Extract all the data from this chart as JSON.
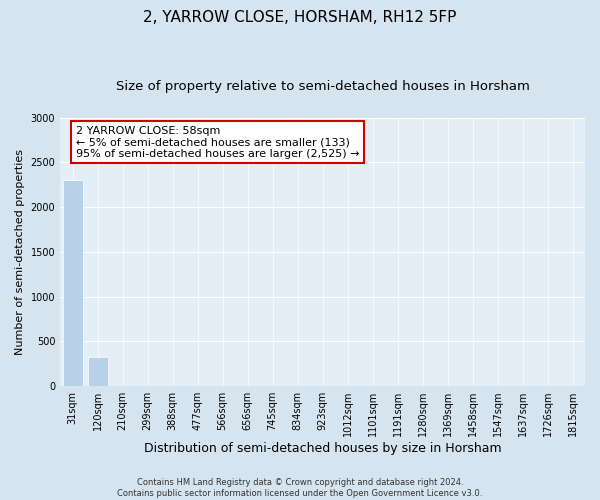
{
  "title": "2, YARROW CLOSE, HORSHAM, RH12 5FP",
  "subtitle": "Size of property relative to semi-detached houses in Horsham",
  "xlabel": "Distribution of semi-detached houses by size in Horsham",
  "ylabel": "Number of semi-detached properties",
  "footer_line1": "Contains HM Land Registry data © Crown copyright and database right 2024.",
  "footer_line2": "Contains public sector information licensed under the Open Government Licence v3.0.",
  "categories": [
    "31sqm",
    "120sqm",
    "210sqm",
    "299sqm",
    "388sqm",
    "477sqm",
    "566sqm",
    "656sqm",
    "745sqm",
    "834sqm",
    "923sqm",
    "1012sqm",
    "1101sqm",
    "1191sqm",
    "1280sqm",
    "1369sqm",
    "1458sqm",
    "1547sqm",
    "1637sqm",
    "1726sqm",
    "1815sqm"
  ],
  "values": [
    2300,
    330,
    5,
    2,
    1,
    1,
    0,
    0,
    0,
    0,
    0,
    0,
    0,
    0,
    0,
    0,
    0,
    0,
    0,
    0,
    0
  ],
  "bar_color": "#b8d0e8",
  "annotation_title": "2 YARROW CLOSE: 58sqm",
  "annotation_line1": "← 5% of semi-detached houses are smaller (133)",
  "annotation_line2": "95% of semi-detached houses are larger (2,525) →",
  "annotation_box_edgecolor": "#cc0000",
  "ylim": [
    0,
    3000
  ],
  "yticks": [
    0,
    500,
    1000,
    1500,
    2000,
    2500,
    3000
  ],
  "bg_color": "#d6e4f0",
  "plot_bg_color": "#e4eef7",
  "title_fontsize": 11,
  "subtitle_fontsize": 9.5,
  "tick_fontsize": 7,
  "ylabel_fontsize": 8,
  "xlabel_fontsize": 9,
  "footer_fontsize": 6,
  "ann_fontsize": 8
}
